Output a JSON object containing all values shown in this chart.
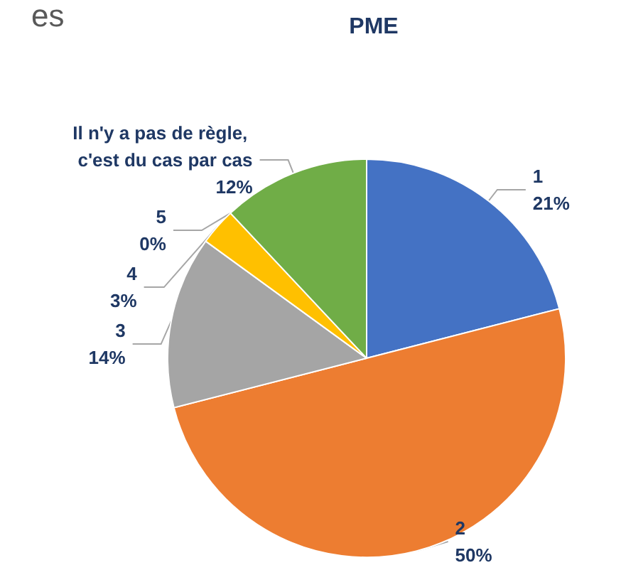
{
  "chart_data": {
    "type": "pie",
    "title": "PME",
    "annotations": [
      "es"
    ],
    "categories": [
      "1",
      "2",
      "3",
      "4",
      "5",
      "Il n'y a pas de règle, c'est du cas par cas"
    ],
    "values": [
      21,
      50,
      14,
      3,
      0,
      12
    ],
    "value_labels": [
      "21%",
      "50%",
      "14%",
      "3%",
      "0%",
      "12%"
    ],
    "colors": [
      "#4472c4",
      "#ed7d31",
      "#a5a5a5",
      "#ffc000",
      "#5b9bd5",
      "#70ad47"
    ]
  }
}
